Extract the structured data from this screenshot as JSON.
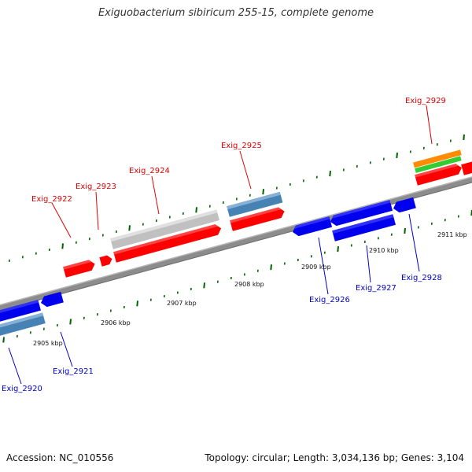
{
  "title": "Exiguobacterium sibiricum 255-15, complete genome",
  "footer": {
    "accession": "Accession: NC_010556",
    "topology": "Topology: circular; Length: 3,034,136 bp; Genes: 3,104"
  },
  "colors": {
    "forward_gene": "#ff0000",
    "reverse_gene": "#0000ee",
    "forward_label": "#dd0000",
    "reverse_label": "#0000cc",
    "pseudogene": "#c0c0c0",
    "rna_feature": "#4682b4",
    "orange_feature": "#ff8c00",
    "green_feature": "#33cc33",
    "tick": "#006400",
    "backbone": "#888888"
  },
  "kbp_ticks": [
    "2905 kbp",
    "2906 kbp",
    "2907 kbp",
    "2908 kbp",
    "2909 kbp",
    "2910 kbp",
    "2911 kbp"
  ],
  "genes": [
    {
      "name": "Exig_2920",
      "strand": "reverse"
    },
    {
      "name": "Exig_2921",
      "strand": "reverse"
    },
    {
      "name": "Exig_2922",
      "strand": "forward"
    },
    {
      "name": "Exig_2923",
      "strand": "forward"
    },
    {
      "name": "Exig_2924",
      "strand": "forward"
    },
    {
      "name": "Exig_2925",
      "strand": "forward"
    },
    {
      "name": "Exig_2926",
      "strand": "reverse"
    },
    {
      "name": "Exig_2927",
      "strand": "reverse"
    },
    {
      "name": "Exig_2928",
      "strand": "reverse"
    },
    {
      "name": "Exig_2929",
      "strand": "forward"
    }
  ]
}
